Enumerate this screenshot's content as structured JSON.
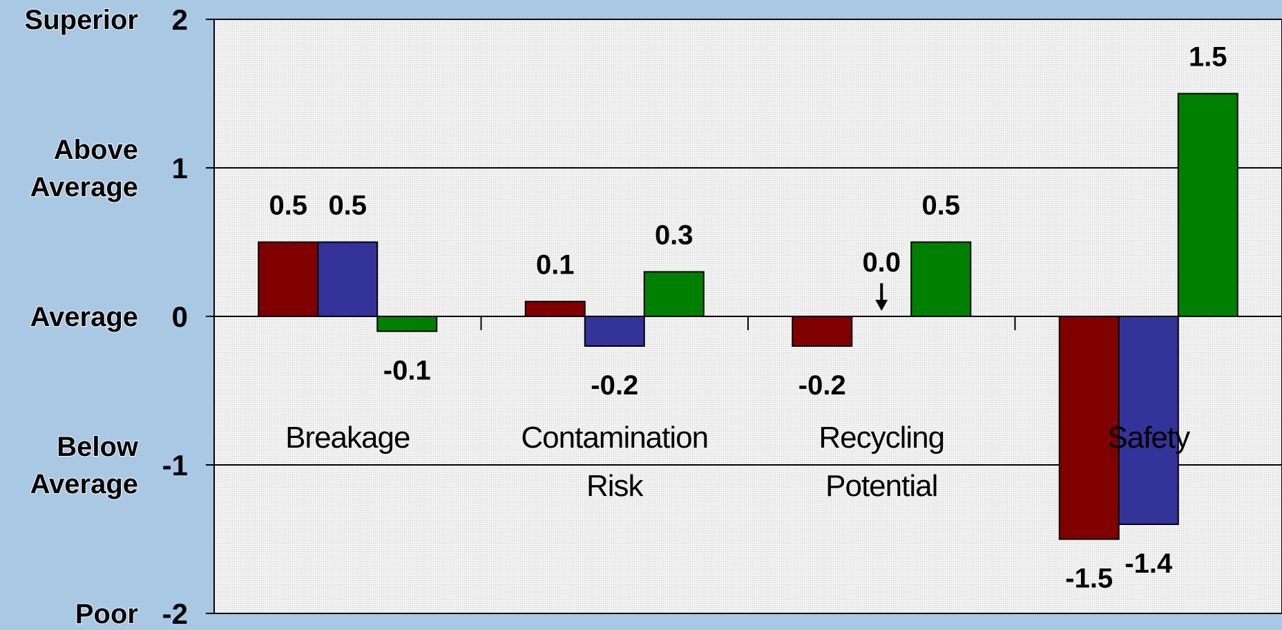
{
  "chart_data": {
    "type": "bar",
    "categories": [
      [
        "Breakage"
      ],
      [
        "Contamination",
        "Risk"
      ],
      [
        "Recycling",
        "Potential"
      ],
      [
        "Safety"
      ]
    ],
    "series": [
      {
        "color": "#800000",
        "values": [
          0.5,
          0.1,
          -0.2,
          -1.5
        ],
        "labels": [
          "0.5",
          "0.1",
          "-0.2",
          "-1.5"
        ]
      },
      {
        "color": "#333399",
        "values": [
          0.5,
          -0.2,
          0.0,
          -1.4
        ],
        "labels": [
          "0.5",
          "-0.2",
          "0.0",
          "-1.4"
        ]
      },
      {
        "color": "#008000",
        "values": [
          -0.1,
          0.3,
          0.5,
          1.5
        ],
        "labels": [
          "-0.1",
          "0.3",
          "0.5",
          "1.5"
        ]
      }
    ],
    "ylim": [
      -2,
      2
    ],
    "yticks": [
      {
        "value": 2,
        "label": "2",
        "qualitative": [
          "Superior"
        ]
      },
      {
        "value": 1,
        "label": "1",
        "qualitative": [
          "Above",
          "Average"
        ]
      },
      {
        "value": 0,
        "label": "0",
        "qualitative": [
          "Average"
        ]
      },
      {
        "value": -1,
        "label": "-1",
        "qualitative": [
          "Below",
          "Average"
        ]
      },
      {
        "value": -2,
        "label": "-2",
        "qualitative": [
          "Poor"
        ]
      }
    ],
    "grid": true,
    "legend": "none",
    "annotations": [
      {
        "type": "arrow",
        "category_index": 2,
        "series_index": 1,
        "points_to_value": 0.0
      }
    ]
  }
}
